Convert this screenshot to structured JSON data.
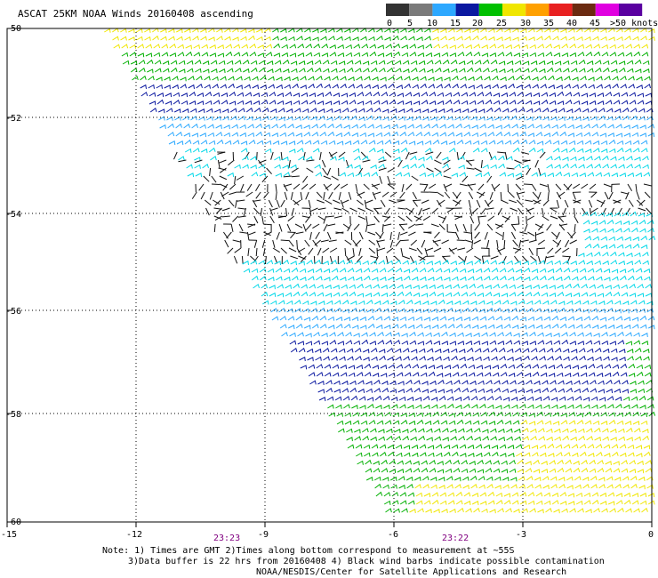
{
  "title": "ASCAT 25KM NOAA Winds 20160408 ascending",
  "legend": {
    "labels": [
      "0",
      "5",
      "10",
      "15",
      "20",
      "25",
      "30",
      "35",
      "40",
      "45",
      ">50 knots"
    ],
    "colors": [
      "#333333",
      "#7a7a7a",
      "#2da8ff",
      "#0a18a0",
      "#00c000",
      "#f0e600",
      "#ffa000",
      "#e82020",
      "#6b2a10",
      "#e000e0",
      "#5a00a0"
    ]
  },
  "axes": {
    "lat_labels": [
      "-50",
      "-52",
      "-54",
      "-56",
      "-58",
      "-60"
    ],
    "lon_labels": [
      "-15",
      "-12",
      "-9",
      "-6",
      "-3",
      "0"
    ]
  },
  "pass_times": [
    "23:23",
    "23:22"
  ],
  "notes": {
    "line1": "Note: 1) Times are GMT 2)Times along bottom correspond to measurement at ~55S",
    "line2": "3)Data buffer is 22 hrs from 20160408 4) Black wind barbs indicate possible contamination",
    "line3": "NOAA/NESDIS/Center for Satellite Applications and Research"
  },
  "colors": {
    "barb_yellow": "#f0e600",
    "barb_green": "#00b000",
    "barb_blue": "#0a18a0",
    "barb_lightblue": "#2aa8ff",
    "barb_cyan": "#00d8e8",
    "barb_black": "#111111",
    "time_label": "#800080"
  }
}
